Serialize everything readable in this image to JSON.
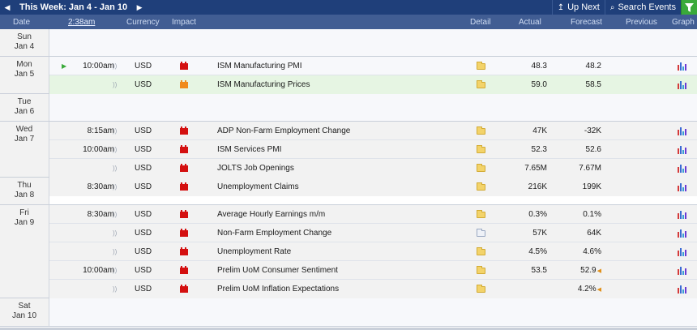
{
  "topbar": {
    "prev_icon": "◀",
    "week_label": "This Week: Jan 4 - Jan 10",
    "next_icon": "▶",
    "up_next_icon": "up-arrow-icon",
    "up_next_label": "Up Next",
    "search_icon": "magnifier-icon",
    "search_label": "Search Events",
    "filter_icon": "funnel-icon"
  },
  "header": {
    "date": "Date",
    "time": "2:38am",
    "currency": "Currency",
    "impact": "Impact",
    "detail": "Detail",
    "actual": "Actual",
    "forecast": "Forecast",
    "previous": "Previous",
    "graph": "Graph"
  },
  "colors": {
    "high_impact": "#d41010",
    "medium_impact": "#f08a1c",
    "header_bg": "#415d93",
    "topbar_bg": "#1f3f7a",
    "filter_bg": "#3aaa3a"
  },
  "days": [
    {
      "day": "Sun",
      "date": "Jan 4",
      "events": []
    },
    {
      "day": "Mon",
      "date": "Jan 5",
      "events": [
        {
          "time": "10:00am",
          "upcoming": true,
          "currency": "USD",
          "impact": "high",
          "name": "ISM Manufacturing PMI",
          "forecast": "48.3",
          "previous": "48.2"
        },
        {
          "time": "",
          "currency": "USD",
          "impact": "medium",
          "name": "ISM Manufacturing Prices",
          "forecast": "59.0",
          "previous": "58.5"
        }
      ]
    },
    {
      "day": "Tue",
      "date": "Jan 6",
      "events": []
    },
    {
      "day": "Wed",
      "date": "Jan 7",
      "events": [
        {
          "time": "8:15am",
          "currency": "USD",
          "impact": "high",
          "name": "ADP Non-Farm Employment Change",
          "forecast": "47K",
          "previous": "-32K"
        },
        {
          "time": "10:00am",
          "currency": "USD",
          "impact": "high",
          "name": "ISM Services PMI",
          "forecast": "52.3",
          "previous": "52.6"
        },
        {
          "time": "",
          "currency": "USD",
          "impact": "high",
          "name": "JOLTS Job Openings",
          "forecast": "7.65M",
          "previous": "7.67M"
        }
      ]
    },
    {
      "day": "Thu",
      "date": "Jan 8",
      "events": [
        {
          "time": "8:30am",
          "currency": "USD",
          "impact": "high",
          "name": "Unemployment Claims",
          "forecast": "216K",
          "previous": "199K"
        }
      ]
    },
    {
      "day": "Fri",
      "date": "Jan 9",
      "events": [
        {
          "time": "8:30am",
          "currency": "USD",
          "impact": "high",
          "name": "Average Hourly Earnings m/m",
          "forecast": "0.3%",
          "previous": "0.1%"
        },
        {
          "time": "",
          "currency": "USD",
          "impact": "high",
          "name": "Non-Farm Employment Change",
          "forecast": "57K",
          "previous": "64K"
        },
        {
          "time": "",
          "currency": "USD",
          "impact": "high",
          "name": "Unemployment Rate",
          "forecast": "4.5%",
          "previous": "4.6%"
        },
        {
          "time": "10:00am",
          "currency": "USD",
          "impact": "high",
          "name": "Prelim UoM Consumer Sentiment",
          "forecast": "53.5",
          "previous": "52.9",
          "revised": true
        },
        {
          "time": "",
          "currency": "USD",
          "impact": "high",
          "name": "Prelim UoM Inflation Expectations",
          "forecast": "",
          "previous": "4.2%",
          "revised": true
        }
      ]
    },
    {
      "day": "Sat",
      "date": "Jan 10",
      "events": []
    }
  ]
}
